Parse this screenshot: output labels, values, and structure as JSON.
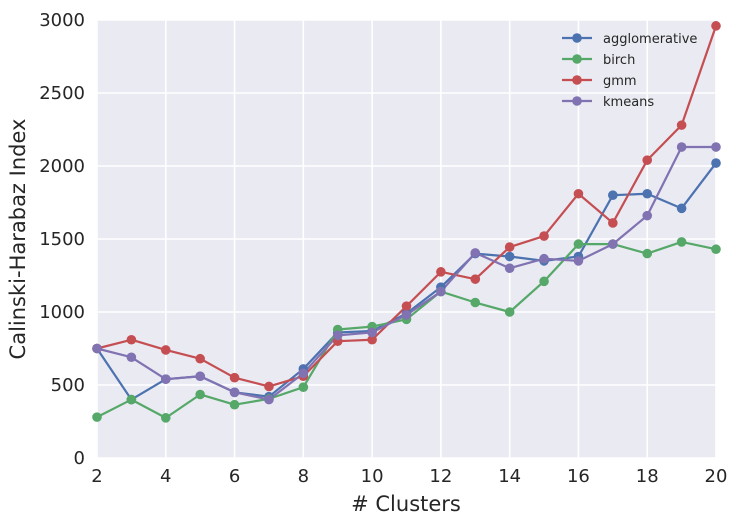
{
  "chart_data": {
    "type": "line",
    "title": "",
    "xlabel": "# Clusters",
    "ylabel": "Calinski-Harabaz Index",
    "xlim": [
      2,
      20
    ],
    "ylim": [
      0,
      3000
    ],
    "xticks": [
      2,
      4,
      6,
      8,
      10,
      12,
      14,
      16,
      18,
      20
    ],
    "yticks": [
      0,
      500,
      1000,
      1500,
      2000,
      2500,
      3000
    ],
    "grid": true,
    "legend_position": "top-right",
    "x": [
      2,
      3,
      4,
      5,
      6,
      7,
      8,
      9,
      10,
      11,
      12,
      13,
      14,
      15,
      16,
      17,
      18,
      19,
      20
    ],
    "series": [
      {
        "name": "agglomerative",
        "color": "#4c72b0",
        "values": [
          750,
          400,
          540,
          560,
          450,
          420,
          610,
          860,
          870,
          990,
          1170,
          1400,
          1380,
          1350,
          1380,
          1800,
          1810,
          1710,
          2020
        ]
      },
      {
        "name": "birch",
        "color": "#55a868",
        "values": [
          280,
          400,
          275,
          435,
          365,
          405,
          485,
          880,
          900,
          950,
          1140,
          1065,
          1000,
          1210,
          1465,
          1465,
          1400,
          1480,
          1430
        ]
      },
      {
        "name": "gmm",
        "color": "#c44e52",
        "values": [
          750,
          810,
          740,
          680,
          550,
          490,
          560,
          800,
          810,
          1040,
          1275,
          1225,
          1445,
          1520,
          1810,
          1610,
          2040,
          2280,
          2960
        ]
      },
      {
        "name": "kmeans",
        "color": "#8172b2",
        "values": [
          750,
          690,
          540,
          560,
          450,
          400,
          580,
          840,
          860,
          980,
          1140,
          1405,
          1300,
          1365,
          1350,
          1465,
          1660,
          2130,
          2130
        ]
      }
    ]
  },
  "style": {
    "plot_background": "#eaeaf2",
    "grid_color": "#ffffff",
    "text_color": "#262626"
  }
}
